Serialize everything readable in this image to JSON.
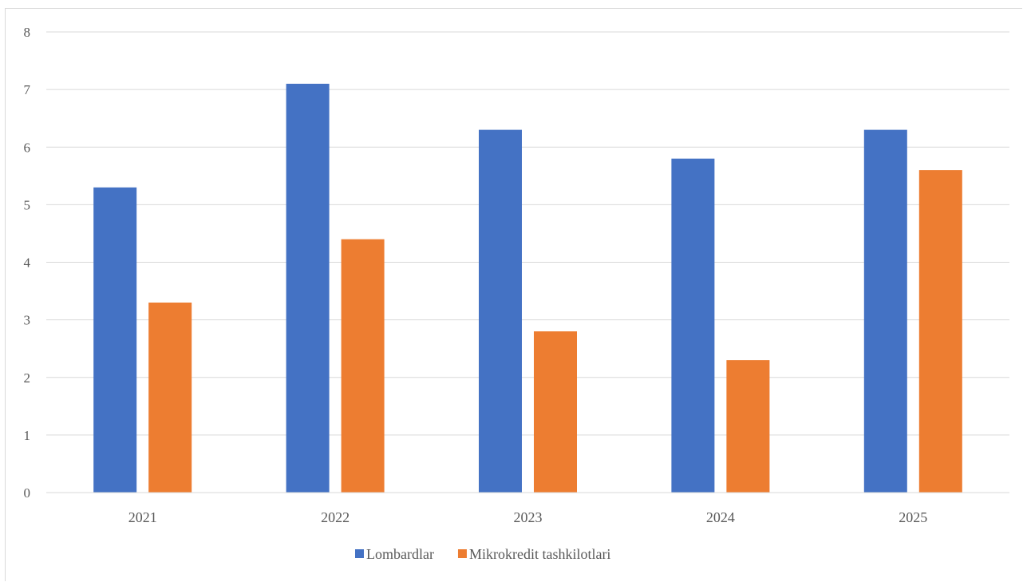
{
  "chart_data": {
    "type": "bar",
    "categories": [
      "2021",
      "2022",
      "2023",
      "2024",
      "2025"
    ],
    "series": [
      {
        "name": "Lombardlar",
        "color": "#4472c4",
        "values": [
          5.3,
          7.1,
          6.3,
          5.8,
          6.3
        ]
      },
      {
        "name": "Mikrokredit tashkilotlari",
        "color": "#ed7d31",
        "values": [
          3.3,
          4.4,
          2.8,
          2.3,
          5.6
        ]
      }
    ],
    "yticks": [
      "0",
      "1",
      "2",
      "3",
      "4",
      "5",
      "6",
      "7",
      "8"
    ],
    "ylim": [
      0,
      8
    ],
    "grid": true,
    "legend_position": "bottom"
  }
}
